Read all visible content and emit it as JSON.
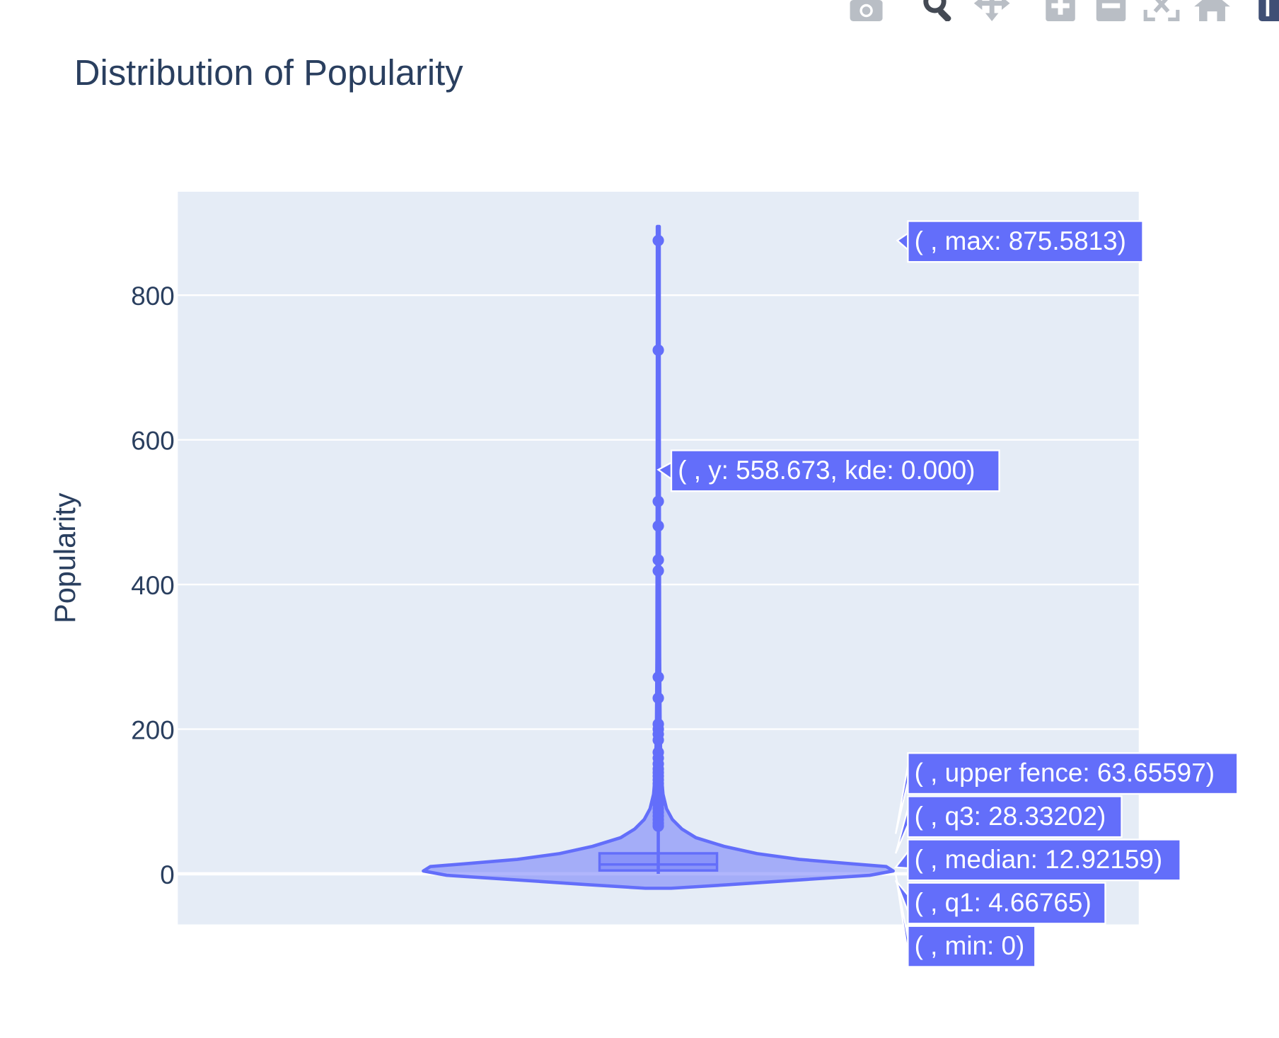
{
  "modebar": {
    "buttons": [
      "camera-icon",
      "zoom-icon",
      "pan-icon",
      "zoom-in-icon",
      "zoom-out-icon",
      "autoscale-icon",
      "reset-axes-icon",
      "plotly-logo-icon"
    ]
  },
  "colors": {
    "accent": "#636efa",
    "plot_bg": "#e5ecf6",
    "grid": "#ffffff",
    "text": "#2a3f5f",
    "hover_label_bg": "#636efa"
  },
  "chart_data": {
    "type": "violin",
    "title": "Distribution of Popularity",
    "xlabel": "",
    "ylabel": "Popularity",
    "ylim": [
      -70,
      940
    ],
    "y_ticks": [
      0,
      200,
      400,
      600,
      800
    ],
    "grid": true,
    "legend": "none",
    "stats": {
      "min": 0,
      "q1": 4.66765,
      "median": 12.92159,
      "q3": 28.33202,
      "upper_fence": 63.65597,
      "max": 875.5813
    },
    "outliers": [
      875.5813,
      724,
      515,
      481,
      434,
      419,
      272,
      243,
      207,
      200,
      193,
      185,
      168,
      160,
      152,
      145,
      140,
      135,
      130,
      125,
      120,
      115,
      110,
      105,
      100,
      95,
      90,
      85,
      80,
      75,
      70,
      66
    ],
    "kde_profile": [
      {
        "y": -20,
        "w": 0.055
      },
      {
        "y": -15,
        "w": 0.3
      },
      {
        "y": -8,
        "w": 0.62
      },
      {
        "y": -2,
        "w": 0.9
      },
      {
        "y": 4,
        "w": 1.0
      },
      {
        "y": 10,
        "w": 0.97
      },
      {
        "y": 14,
        "w": 0.82
      },
      {
        "y": 20,
        "w": 0.6
      },
      {
        "y": 28,
        "w": 0.42
      },
      {
        "y": 38,
        "w": 0.28
      },
      {
        "y": 50,
        "w": 0.16
      },
      {
        "y": 62,
        "w": 0.1
      },
      {
        "y": 75,
        "w": 0.06
      },
      {
        "y": 90,
        "w": 0.035
      },
      {
        "y": 110,
        "w": 0.02
      },
      {
        "y": 140,
        "w": 0.012
      },
      {
        "y": 200,
        "w": 0.008
      },
      {
        "y": 300,
        "w": 0.006
      },
      {
        "y": 500,
        "w": 0.005
      },
      {
        "y": 700,
        "w": 0.004
      },
      {
        "y": 895,
        "w": 0.004
      }
    ],
    "hover_labels": [
      {
        "key": "max",
        "text": "( , max: 875.5813)"
      },
      {
        "key": "kde",
        "text": "( , y: 558.673, kde: 0.000)"
      },
      {
        "key": "upper_fence",
        "text": "( , upper fence: 63.65597)"
      },
      {
        "key": "q3",
        "text": "( , q3: 28.33202)"
      },
      {
        "key": "median",
        "text": "( , median: 12.92159)"
      },
      {
        "key": "q1",
        "text": "( , q1: 4.66765)"
      },
      {
        "key": "min",
        "text": "( , min: 0)"
      }
    ]
  }
}
